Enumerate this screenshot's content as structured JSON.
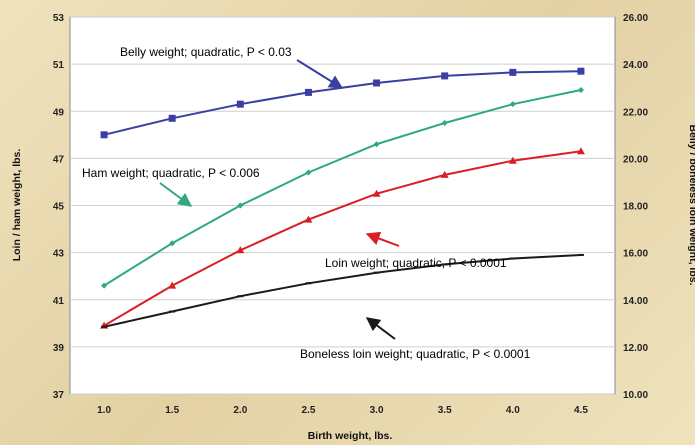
{
  "chart_data": {
    "type": "line",
    "title": "",
    "xlabel": "Birth weight, lbs.",
    "ylabel_left": "Loin / ham weight, lbs.",
    "ylabel_right": "Belly / boneless loin weight, lbs.",
    "x": [
      1.0,
      1.5,
      2.0,
      2.5,
      3.0,
      3.5,
      4.0,
      4.5
    ],
    "x_ticks": [
      "1.0",
      "1.5",
      "2.0",
      "2.5",
      "3.0",
      "3.5",
      "4.0",
      "4.5"
    ],
    "ylim_left": [
      37,
      53
    ],
    "ylim_right": [
      10,
      26
    ],
    "y_ticks_left": [
      "37",
      "39",
      "41",
      "43",
      "45",
      "47",
      "49",
      "51",
      "53"
    ],
    "y_ticks_right": [
      "10.00",
      "12.00",
      "14.00",
      "16.00",
      "18.00",
      "20.00",
      "22.00",
      "24.00",
      "26.00"
    ],
    "grid": true,
    "series": [
      {
        "key": "belly",
        "axis": "right",
        "marker": "square",
        "color": "#3b3fa3",
        "values": [
          21.0,
          21.7,
          22.3,
          22.8,
          23.2,
          23.5,
          23.65,
          23.7
        ]
      },
      {
        "key": "ham",
        "axis": "left",
        "marker": "diamond",
        "color": "#2ea880",
        "values": [
          41.6,
          43.4,
          45.0,
          46.4,
          47.6,
          48.5,
          49.3,
          49.9
        ]
      },
      {
        "key": "loin",
        "axis": "left",
        "marker": "triangle",
        "color": "#d91f26",
        "values": [
          39.9,
          41.6,
          43.1,
          44.4,
          45.5,
          46.3,
          46.9,
          47.3
        ]
      },
      {
        "key": "boneless",
        "axis": "right",
        "marker": "dash",
        "color": "#1a1a1a",
        "values": [
          12.85,
          13.5,
          14.15,
          14.7,
          15.15,
          15.5,
          15.75,
          15.9
        ]
      }
    ],
    "annotations": [
      {
        "key": "belly",
        "text": "Belly weight; quadratic, P < 0.03",
        "color": "#3b3fa3"
      },
      {
        "key": "ham",
        "text": "Ham weight; quadratic, P < 0.006",
        "color": "#2ea880"
      },
      {
        "key": "loin",
        "text": "Loin weight; quadratic, P < 0.0001",
        "color": "#d91f26"
      },
      {
        "key": "boneless",
        "text": "Boneless loin weight; quadratic, P < 0.0001",
        "color": "#1a1a1a"
      }
    ]
  }
}
